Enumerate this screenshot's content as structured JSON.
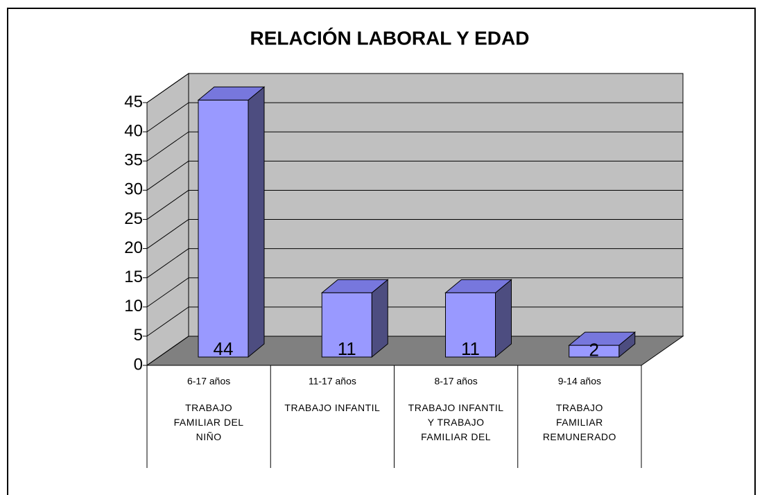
{
  "chart_data": {
    "type": "bar3d",
    "title": "RELACIÓN LABORAL Y EDAD",
    "categories": [
      "6-17 años",
      "11-17 años",
      "8-17 años",
      "9-14 años"
    ],
    "category_labels": [
      "TRABAJO FAMILIAR DEL NIÑO",
      "TRABAJO INFANTIL",
      "TRABAJO INFANTIL Y TRABAJO FAMILIAR DEL",
      "TRABAJO FAMILIAR REMUNERADO"
    ],
    "values": [
      44,
      11,
      11,
      2
    ],
    "color": "#9999ff",
    "ylim": [
      0,
      45
    ],
    "yticks": [
      0,
      5,
      10,
      15,
      20,
      25,
      30,
      35,
      40,
      45
    ],
    "grid": true
  }
}
